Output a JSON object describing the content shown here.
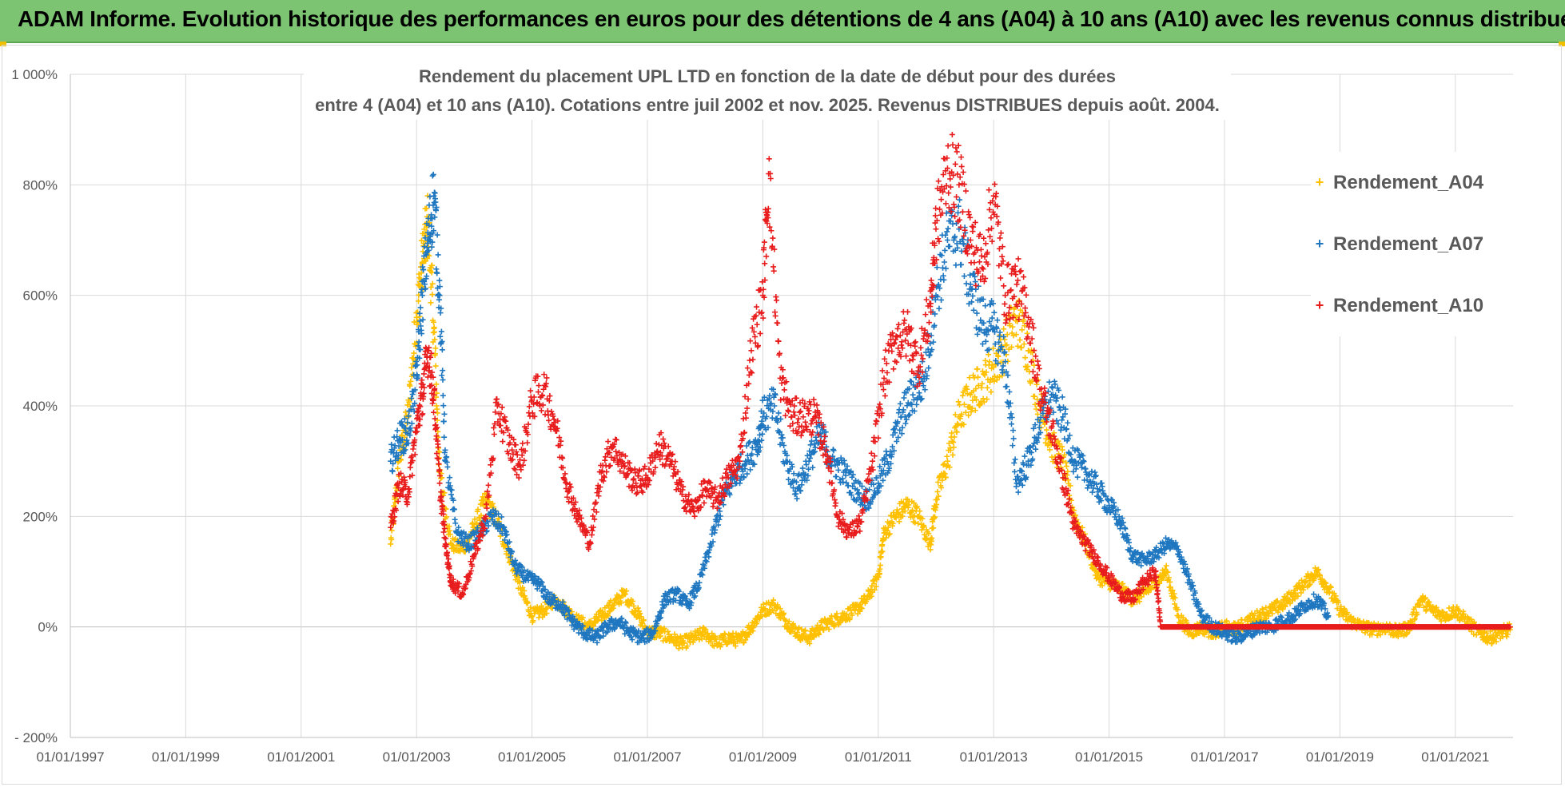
{
  "banner": {
    "title": "ADAM Informe. Evolution historique des performances en euros pour des détentions de 4 ans (A04) à 10 ans (A10) avec les revenus connus distribués"
  },
  "chart_data": {
    "type": "scatter",
    "title_line1": "Rendement du placement UPL LTD en fonction de la date de début pour des durées",
    "title_line2": "entre 4 (A04) et 10 ans (A10). Cotations entre juil 2002 et nov. 2025. Revenus DISTRIBUES depuis août. 2004.",
    "xlabel": "",
    "ylabel": "",
    "x_range": [
      1997.0,
      2022.0
    ],
    "ylim": [
      -200,
      1000
    ],
    "y_ticks": [
      -200,
      0,
      200,
      400,
      600,
      800,
      1000
    ],
    "y_tick_labels": [
      "- 200%",
      "0%",
      "200%",
      "400%",
      "600%",
      "800%",
      "1 000%"
    ],
    "x_ticks": [
      1997,
      1999,
      2001,
      2003,
      2005,
      2007,
      2009,
      2011,
      2013,
      2015,
      2017,
      2019,
      2021
    ],
    "x_tick_labels": [
      "01/01/1997",
      "01/01/1999",
      "01/01/2001",
      "01/01/2003",
      "01/01/2005",
      "01/01/2007",
      "01/01/2009",
      "01/01/2011",
      "01/01/2013",
      "01/01/2015",
      "01/01/2017",
      "01/01/2019",
      "01/01/2021"
    ],
    "legend_position": "right",
    "marker": "+",
    "series": [
      {
        "name": "Rendement_A04",
        "color": "#ffc000",
        "points": [
          [
            2002.55,
            150
          ],
          [
            2002.7,
            300
          ],
          [
            2002.85,
            380
          ],
          [
            2003.0,
            560
          ],
          [
            2003.1,
            660
          ],
          [
            2003.2,
            730
          ],
          [
            2003.3,
            540
          ],
          [
            2003.4,
            280
          ],
          [
            2003.6,
            150
          ],
          [
            2003.8,
            140
          ],
          [
            2004.0,
            180
          ],
          [
            2004.2,
            230
          ],
          [
            2004.4,
            190
          ],
          [
            2004.6,
            130
          ],
          [
            2004.8,
            70
          ],
          [
            2005.0,
            20
          ],
          [
            2005.2,
            30
          ],
          [
            2005.4,
            50
          ],
          [
            2005.6,
            30
          ],
          [
            2005.8,
            10
          ],
          [
            2006.0,
            0
          ],
          [
            2006.2,
            20
          ],
          [
            2006.4,
            40
          ],
          [
            2006.6,
            60
          ],
          [
            2006.8,
            30
          ],
          [
            2007.0,
            -10
          ],
          [
            2007.2,
            -10
          ],
          [
            2007.4,
            -20
          ],
          [
            2007.6,
            -30
          ],
          [
            2007.8,
            -20
          ],
          [
            2008.0,
            -10
          ],
          [
            2008.2,
            -30
          ],
          [
            2008.4,
            -20
          ],
          [
            2008.6,
            -25
          ],
          [
            2008.8,
            0
          ],
          [
            2009.0,
            30
          ],
          [
            2009.2,
            40
          ],
          [
            2009.4,
            10
          ],
          [
            2009.6,
            -10
          ],
          [
            2009.8,
            -20
          ],
          [
            2010.0,
            0
          ],
          [
            2010.2,
            10
          ],
          [
            2010.4,
            20
          ],
          [
            2010.6,
            30
          ],
          [
            2010.8,
            50
          ],
          [
            2011.0,
            90
          ],
          [
            2011.1,
            170
          ],
          [
            2011.3,
            200
          ],
          [
            2011.5,
            220
          ],
          [
            2011.7,
            200
          ],
          [
            2011.9,
            150
          ],
          [
            2012.0,
            230
          ],
          [
            2012.2,
            300
          ],
          [
            2012.4,
            380
          ],
          [
            2012.6,
            420
          ],
          [
            2012.8,
            440
          ],
          [
            2013.0,
            470
          ],
          [
            2013.2,
            510
          ],
          [
            2013.4,
            560
          ],
          [
            2013.6,
            500
          ],
          [
            2013.8,
            400
          ],
          [
            2014.0,
            330
          ],
          [
            2014.2,
            300
          ],
          [
            2014.4,
            200
          ],
          [
            2014.6,
            150
          ],
          [
            2014.8,
            90
          ],
          [
            2015.0,
            80
          ],
          [
            2015.2,
            70
          ],
          [
            2015.4,
            50
          ],
          [
            2015.6,
            60
          ],
          [
            2015.8,
            80
          ],
          [
            2016.0,
            100
          ],
          [
            2016.2,
            20
          ],
          [
            2016.4,
            -10
          ],
          [
            2016.6,
            0
          ],
          [
            2016.8,
            -10
          ],
          [
            2017.0,
            0
          ],
          [
            2017.2,
            -5
          ],
          [
            2017.4,
            10
          ],
          [
            2017.6,
            20
          ],
          [
            2017.8,
            30
          ],
          [
            2018.0,
            40
          ],
          [
            2018.2,
            60
          ],
          [
            2018.4,
            80
          ],
          [
            2018.6,
            100
          ],
          [
            2018.8,
            70
          ],
          [
            2019.0,
            30
          ],
          [
            2019.2,
            10
          ],
          [
            2019.4,
            0
          ],
          [
            2019.6,
            -5
          ],
          [
            2019.8,
            0
          ],
          [
            2020.0,
            -10
          ],
          [
            2020.2,
            0
          ],
          [
            2020.4,
            50
          ],
          [
            2020.6,
            30
          ],
          [
            2020.8,
            20
          ],
          [
            2021.0,
            30
          ],
          [
            2021.2,
            10
          ],
          [
            2021.4,
            -10
          ],
          [
            2021.6,
            -20
          ],
          [
            2021.8,
            -10
          ],
          [
            2021.95,
            -5
          ]
        ]
      },
      {
        "name": "Rendement_A07",
        "color": "#1f77c0",
        "points": [
          [
            2002.55,
            300
          ],
          [
            2002.7,
            340
          ],
          [
            2002.85,
            350
          ],
          [
            2003.0,
            450
          ],
          [
            2003.1,
            600
          ],
          [
            2003.2,
            700
          ],
          [
            2003.3,
            780
          ],
          [
            2003.4,
            600
          ],
          [
            2003.5,
            300
          ],
          [
            2003.7,
            170
          ],
          [
            2003.9,
            150
          ],
          [
            2004.1,
            170
          ],
          [
            2004.3,
            200
          ],
          [
            2004.5,
            180
          ],
          [
            2004.7,
            110
          ],
          [
            2004.9,
            90
          ],
          [
            2005.1,
            80
          ],
          [
            2005.3,
            50
          ],
          [
            2005.5,
            40
          ],
          [
            2005.7,
            10
          ],
          [
            2005.9,
            -10
          ],
          [
            2006.1,
            -20
          ],
          [
            2006.3,
            0
          ],
          [
            2006.5,
            10
          ],
          [
            2006.7,
            -10
          ],
          [
            2006.9,
            -20
          ],
          [
            2007.1,
            -10
          ],
          [
            2007.3,
            50
          ],
          [
            2007.5,
            60
          ],
          [
            2007.7,
            40
          ],
          [
            2007.9,
            80
          ],
          [
            2008.1,
            150
          ],
          [
            2008.3,
            230
          ],
          [
            2008.5,
            270
          ],
          [
            2008.7,
            300
          ],
          [
            2008.9,
            330
          ],
          [
            2009.0,
            380
          ],
          [
            2009.2,
            400
          ],
          [
            2009.4,
            300
          ],
          [
            2009.6,
            250
          ],
          [
            2009.8,
            300
          ],
          [
            2010.0,
            350
          ],
          [
            2010.2,
            300
          ],
          [
            2010.4,
            280
          ],
          [
            2010.6,
            250
          ],
          [
            2010.8,
            230
          ],
          [
            2011.0,
            260
          ],
          [
            2011.2,
            310
          ],
          [
            2011.4,
            380
          ],
          [
            2011.6,
            420
          ],
          [
            2011.8,
            450
          ],
          [
            2012.0,
            600
          ],
          [
            2012.2,
            700
          ],
          [
            2012.4,
            720
          ],
          [
            2012.6,
            620
          ],
          [
            2012.8,
            550
          ],
          [
            2013.0,
            540
          ],
          [
            2013.2,
            480
          ],
          [
            2013.4,
            260
          ],
          [
            2013.6,
            300
          ],
          [
            2013.8,
            370
          ],
          [
            2014.0,
            420
          ],
          [
            2014.2,
            380
          ],
          [
            2014.4,
            300
          ],
          [
            2014.6,
            280
          ],
          [
            2014.8,
            250
          ],
          [
            2015.0,
            220
          ],
          [
            2015.2,
            190
          ],
          [
            2015.4,
            130
          ],
          [
            2015.6,
            120
          ],
          [
            2015.8,
            130
          ],
          [
            2016.0,
            150
          ],
          [
            2016.2,
            140
          ],
          [
            2016.4,
            80
          ],
          [
            2016.6,
            20
          ],
          [
            2016.8,
            0
          ],
          [
            2017.0,
            -10
          ],
          [
            2017.2,
            -20
          ],
          [
            2017.4,
            -10
          ],
          [
            2017.6,
            0
          ],
          [
            2017.8,
            0
          ],
          [
            2018.0,
            10
          ],
          [
            2018.2,
            20
          ],
          [
            2018.4,
            40
          ],
          [
            2018.6,
            50
          ],
          [
            2018.8,
            20
          ]
        ]
      },
      {
        "name": "Rendement_A10",
        "color": "#e81c1c",
        "points": [
          [
            2002.55,
            180
          ],
          [
            2002.7,
            260
          ],
          [
            2002.85,
            240
          ],
          [
            2003.0,
            360
          ],
          [
            2003.1,
            420
          ],
          [
            2003.2,
            500
          ],
          [
            2003.3,
            420
          ],
          [
            2003.4,
            260
          ],
          [
            2003.5,
            150
          ],
          [
            2003.6,
            80
          ],
          [
            2003.8,
            60
          ],
          [
            2004.0,
            130
          ],
          [
            2004.2,
            200
          ],
          [
            2004.4,
            400
          ],
          [
            2004.6,
            330
          ],
          [
            2004.8,
            290
          ],
          [
            2005.0,
            410
          ],
          [
            2005.2,
            430
          ],
          [
            2005.4,
            370
          ],
          [
            2005.6,
            260
          ],
          [
            2005.8,
            200
          ],
          [
            2006.0,
            150
          ],
          [
            2006.2,
            280
          ],
          [
            2006.4,
            330
          ],
          [
            2006.6,
            290
          ],
          [
            2006.8,
            260
          ],
          [
            2007.0,
            270
          ],
          [
            2007.2,
            330
          ],
          [
            2007.4,
            300
          ],
          [
            2007.6,
            240
          ],
          [
            2007.8,
            210
          ],
          [
            2008.0,
            250
          ],
          [
            2008.2,
            230
          ],
          [
            2008.4,
            270
          ],
          [
            2008.6,
            300
          ],
          [
            2008.8,
            500
          ],
          [
            2009.0,
            600
          ],
          [
            2009.1,
            820
          ],
          [
            2009.3,
            450
          ],
          [
            2009.5,
            380
          ],
          [
            2009.7,
            380
          ],
          [
            2009.9,
            380
          ],
          [
            2010.1,
            320
          ],
          [
            2010.3,
            200
          ],
          [
            2010.5,
            170
          ],
          [
            2010.7,
            190
          ],
          [
            2010.9,
            300
          ],
          [
            2011.1,
            450
          ],
          [
            2011.3,
            520
          ],
          [
            2011.5,
            530
          ],
          [
            2011.7,
            470
          ],
          [
            2011.9,
            580
          ],
          [
            2012.0,
            720
          ],
          [
            2012.2,
            830
          ],
          [
            2012.4,
            800
          ],
          [
            2012.6,
            700
          ],
          [
            2012.8,
            650
          ],
          [
            2013.0,
            780
          ],
          [
            2013.2,
            600
          ],
          [
            2013.4,
            620
          ],
          [
            2013.6,
            560
          ],
          [
            2013.8,
            430
          ],
          [
            2014.0,
            360
          ],
          [
            2014.2,
            270
          ],
          [
            2014.4,
            180
          ],
          [
            2014.6,
            150
          ],
          [
            2014.8,
            120
          ],
          [
            2015.0,
            90
          ],
          [
            2015.2,
            60
          ],
          [
            2015.4,
            50
          ],
          [
            2015.6,
            80
          ],
          [
            2015.8,
            100
          ],
          [
            2015.9,
            0
          ],
          [
            2016.5,
            0
          ],
          [
            2017.0,
            0
          ],
          [
            2017.5,
            0
          ],
          [
            2018.0,
            0
          ],
          [
            2018.5,
            0
          ],
          [
            2019.0,
            0
          ],
          [
            2019.5,
            0
          ],
          [
            2020.0,
            0
          ],
          [
            2020.5,
            0
          ],
          [
            2021.0,
            0
          ],
          [
            2021.5,
            0
          ],
          [
            2021.95,
            0
          ]
        ]
      }
    ]
  }
}
